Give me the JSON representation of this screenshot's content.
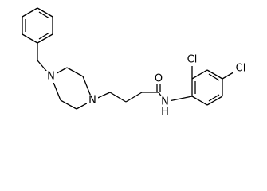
{
  "atoms": [
    {
      "label": "N"
    },
    {
      "label": "N"
    },
    {
      "label": "O"
    },
    {
      "label": "N"
    },
    {
      "label": "H"
    },
    {
      "label": "Cl"
    },
    {
      "label": "Cl"
    }
  ]
}
